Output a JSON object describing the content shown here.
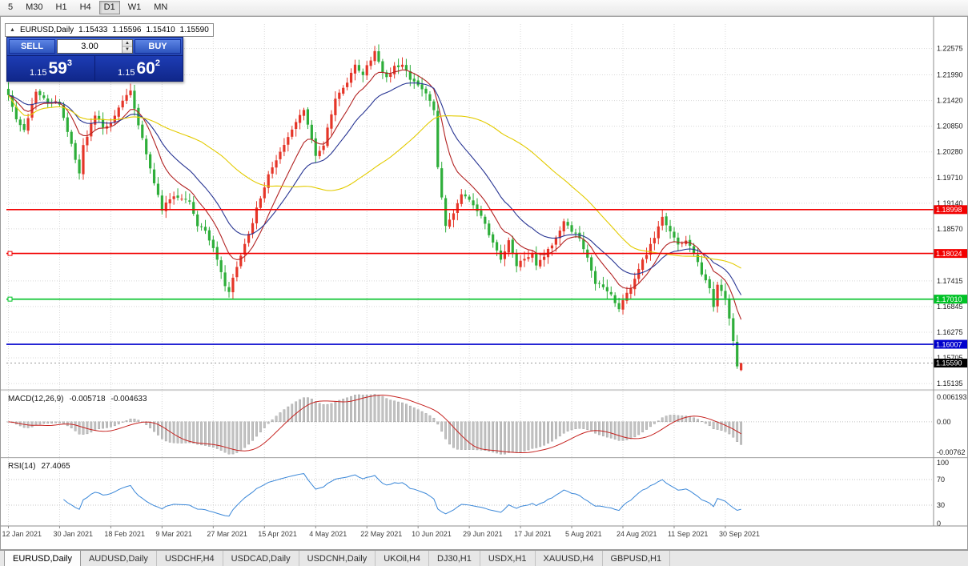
{
  "toolbar": {
    "periods": [
      "5",
      "M30",
      "H1",
      "H4",
      "D1",
      "W1",
      "MN"
    ],
    "active": "D1"
  },
  "chart_header": {
    "collapse": "▲",
    "title": "EURUSD,Daily",
    "open": "1.15433",
    "high": "1.15596",
    "low": "1.15410",
    "close": "1.15590"
  },
  "trade_widget": {
    "sell": "SELL",
    "buy": "BUY",
    "volume": "3.00",
    "spin_up": "▲",
    "spin_down": "▼",
    "bid": {
      "small": "1.15",
      "big": "59",
      "sup": "3"
    },
    "ask": {
      "small": "1.15",
      "big": "60",
      "sup": "2"
    }
  },
  "chart_data": {
    "type": "candlestick",
    "symbol": "EURUSD",
    "timeframe": "Daily",
    "title_ohlc": {
      "open": 1.15433,
      "high": 1.15596,
      "low": 1.1541,
      "close": 1.1559
    },
    "bars": 187,
    "label_every_bars": 13,
    "x_labels": [
      "12 Jan 2021",
      "30 Jan 2021",
      "18 Feb 2021",
      "9 Mar 2021",
      "27 Mar 2021",
      "15 Apr 2021",
      "4 May 2021",
      "22 May 2021",
      "10 Jun 2021",
      "29 Jun 2021",
      "17 Jul 2021",
      "5 Aug 2021",
      "24 Aug 2021",
      "11 Sep 2021",
      "30 Sep 2021"
    ],
    "ylim": [
      1.1503,
      1.2312
    ],
    "y_ticks": [
      "1.22575",
      "1.21990",
      "1.21420",
      "1.20850",
      "1.20280",
      "1.19710",
      "1.19140",
      "1.18570",
      "1.17415",
      "1.16845",
      "1.16275",
      "1.15705",
      "1.15135"
    ],
    "close_anchors": [
      [
        0,
        1.2157
      ],
      [
        2,
        1.21
      ],
      [
        4,
        1.2076
      ],
      [
        7,
        1.2165
      ],
      [
        10,
        1.214
      ],
      [
        13,
        1.2136
      ],
      [
        16,
        1.2045
      ],
      [
        18,
        1.198
      ],
      [
        19,
        1.204
      ],
      [
        22,
        1.211
      ],
      [
        24,
        1.2085
      ],
      [
        26,
        1.2093
      ],
      [
        29,
        1.214
      ],
      [
        31,
        1.2165
      ],
      [
        33,
        1.2088
      ],
      [
        36,
        1.199
      ],
      [
        39,
        1.19
      ],
      [
        41,
        1.1925
      ],
      [
        43,
        1.193
      ],
      [
        46,
        1.1917
      ],
      [
        48,
        1.1865
      ],
      [
        50,
        1.185
      ],
      [
        52,
        1.1814
      ],
      [
        55,
        1.173
      ],
      [
        56,
        1.1715
      ],
      [
        58,
        1.1775
      ],
      [
        60,
        1.182
      ],
      [
        63,
        1.19
      ],
      [
        66,
        1.198
      ],
      [
        69,
        1.203
      ],
      [
        72,
        1.208
      ],
      [
        75,
        1.2122
      ],
      [
        77,
        1.206
      ],
      [
        78,
        1.2016
      ],
      [
        80,
        1.2045
      ],
      [
        83,
        1.2147
      ],
      [
        86,
        1.218
      ],
      [
        88,
        1.2223
      ],
      [
        90,
        1.22
      ],
      [
        93,
        1.225
      ],
      [
        95,
        1.2205
      ],
      [
        96,
        1.219
      ],
      [
        98,
        1.2216
      ],
      [
        100,
        1.2225
      ],
      [
        102,
        1.219
      ],
      [
        104,
        1.218
      ],
      [
        106,
        1.2155
      ],
      [
        108,
        1.2125
      ],
      [
        109,
        1.1995
      ],
      [
        111,
        1.1863
      ],
      [
        113,
        1.189
      ],
      [
        115,
        1.193
      ],
      [
        117,
        1.192
      ],
      [
        119,
        1.1898
      ],
      [
        121,
        1.1865
      ],
      [
        123,
        1.1825
      ],
      [
        125,
        1.179
      ],
      [
        127,
        1.183
      ],
      [
        129,
        1.1775
      ],
      [
        131,
        1.179
      ],
      [
        133,
        1.18
      ],
      [
        134,
        1.1775
      ],
      [
        136,
        1.1795
      ],
      [
        138,
        1.1822
      ],
      [
        140,
        1.1855
      ],
      [
        141,
        1.187
      ],
      [
        143,
        1.1855
      ],
      [
        145,
        1.1838
      ],
      [
        147,
        1.179
      ],
      [
        149,
        1.1739
      ],
      [
        151,
        1.1725
      ],
      [
        153,
        1.171
      ],
      [
        155,
        1.168
      ],
      [
        156,
        1.1697
      ],
      [
        158,
        1.173
      ],
      [
        160,
        1.177
      ],
      [
        162,
        1.18
      ],
      [
        164,
        1.184
      ],
      [
        166,
        1.188
      ],
      [
        168,
        1.185
      ],
      [
        170,
        1.182
      ],
      [
        172,
        1.183
      ],
      [
        174,
        1.1805
      ],
      [
        176,
        1.176
      ],
      [
        178,
        1.1725
      ],
      [
        179,
        1.1686
      ],
      [
        180,
        1.1735
      ],
      [
        182,
        1.17
      ],
      [
        183,
        1.166
      ],
      [
        184,
        1.1605
      ],
      [
        185,
        1.1548
      ],
      [
        186,
        1.1559
      ]
    ],
    "candle_colors": {
      "bull": "#e53528",
      "bear": "#2eae3a"
    },
    "moving_averages": [
      {
        "period": 10,
        "method": "ema",
        "color": "#b22222"
      },
      {
        "period": 21,
        "method": "ema",
        "color": "#283593"
      },
      {
        "period": 50,
        "method": "sma",
        "color": "#e3cb00"
      }
    ],
    "hlines": [
      {
        "price": 1.18998,
        "label": "1.18998",
        "color": "#f20000",
        "marker": false
      },
      {
        "price": 1.18024,
        "label": "1.18024",
        "color": "#f20000",
        "marker": true
      },
      {
        "price": 1.1701,
        "label": "1.17010",
        "color": "#00c226",
        "marker": true
      },
      {
        "price": 1.16007,
        "label": "1.16007",
        "color": "#0000cd",
        "marker": false
      }
    ],
    "current_price": {
      "value": 1.1559,
      "label": "1.15590",
      "bg": "#000000"
    },
    "macd": {
      "label": "MACD(12,26,9)",
      "value": "-0.005718",
      "signal_value": "-0.004633",
      "fast": 12,
      "slow": 26,
      "signal": 9,
      "axis": [
        "0.006193",
        "0.00",
        "-0.00762"
      ],
      "histogram_color": "#c2c2c2",
      "histogram_border": "#9a9a9a",
      "signal_color": "#c62320"
    },
    "rsi": {
      "label": "RSI(14)",
      "value": "27.4065",
      "period": 14,
      "axis": [
        "100",
        "70",
        "30",
        "0"
      ],
      "level_lines": [
        70,
        30
      ],
      "color": "#3a87d8"
    }
  },
  "bottom_tabs": {
    "active_index": 0,
    "items": [
      "EURUSD,Daily",
      "AUDUSD,Daily",
      "USDCHF,H4",
      "USDCAD,Daily",
      "USDCNH,Daily",
      "UKOil,H4",
      "DJ30,H1",
      "USDX,H1",
      "XAUUSD,H4",
      "GBPUSD,H1"
    ]
  }
}
